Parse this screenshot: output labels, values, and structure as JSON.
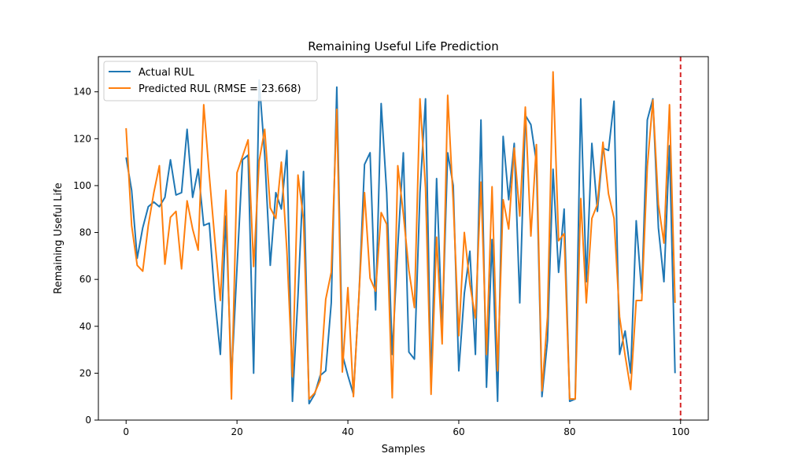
{
  "chart_data": {
    "type": "line",
    "title": "Remaining Useful Life Prediction",
    "xlabel": "Samples",
    "ylabel": "Remaining Useful Life",
    "xlim": [
      -5,
      105
    ],
    "ylim": [
      0,
      155
    ],
    "xticks": [
      0,
      20,
      40,
      60,
      80,
      100
    ],
    "yticks": [
      0,
      20,
      40,
      60,
      80,
      100,
      120,
      140
    ],
    "grid": false,
    "legend_position": "top-left",
    "vline": {
      "x": 100,
      "color": "#d62728",
      "style": "dashed"
    },
    "series": [
      {
        "name": "Actual RUL",
        "color": "#1f77b4",
        "values": [
          112,
          98,
          69,
          82,
          91,
          93,
          91,
          95,
          111,
          96,
          97,
          124,
          95,
          107,
          83,
          84,
          52,
          28,
          87,
          18,
          65,
          111,
          113,
          20,
          145,
          113,
          66,
          97,
          90,
          115,
          8,
          53,
          106,
          7,
          11,
          19,
          21,
          50,
          142,
          28,
          19,
          11,
          53,
          109,
          114,
          47,
          135,
          97,
          28,
          74,
          114,
          29,
          26,
          97,
          137,
          15,
          103,
          38,
          114,
          100,
          21,
          54,
          72,
          28,
          128,
          14,
          77,
          8,
          121,
          94,
          118,
          50,
          130,
          126,
          110,
          10,
          34,
          107,
          63,
          90,
          8,
          9,
          137,
          59,
          118,
          89,
          116,
          115,
          136,
          28,
          38,
          20,
          85,
          54,
          128,
          137,
          82,
          59,
          117,
          20
        ]
      },
      {
        "name": "Predicted RUL (RMSE = 23.668)",
        "color": "#ff7f0e",
        "values": [
          124.5,
          83,
          66,
          63.5,
          83,
          97,
          108.5,
          66.5,
          86.5,
          89,
          64.5,
          93.5,
          81.5,
          72.5,
          134.5,
          104.5,
          77,
          51,
          98,
          9,
          105.5,
          112.5,
          119.5,
          65.5,
          110.5,
          124,
          90.5,
          86,
          110,
          72,
          18.5,
          104.5,
          85.5,
          9,
          11.5,
          17,
          51.5,
          63,
          132.5,
          20.5,
          56.5,
          10,
          53.5,
          97,
          60.5,
          55,
          88.5,
          83.5,
          9.5,
          108.5,
          88,
          64,
          48,
          137,
          99,
          11,
          78,
          32.5,
          138.5,
          93,
          36,
          80,
          58,
          43.5,
          101.5,
          28,
          99.5,
          21,
          94,
          81.5,
          116,
          87,
          133.5,
          78.5,
          117.5,
          12.5,
          44,
          148.5,
          76.5,
          79.5,
          9,
          9,
          94.5,
          50,
          86,
          92,
          118.5,
          96.5,
          86,
          44,
          27.5,
          13,
          51,
          51,
          108,
          136.5,
          92,
          75.5,
          134.5,
          50
        ]
      }
    ]
  }
}
